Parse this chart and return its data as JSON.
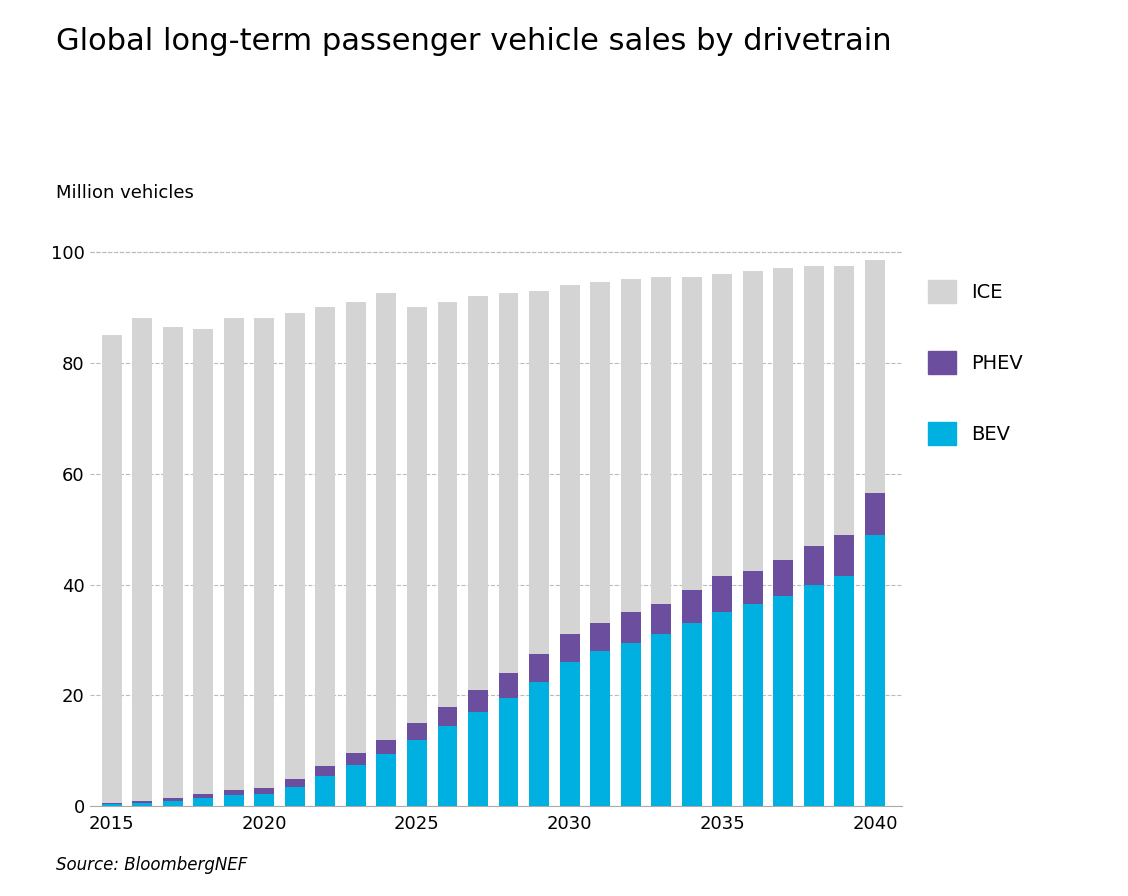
{
  "title": "Global long-term passenger vehicle sales by drivetrain",
  "ylabel": "Million vehicles",
  "source": "Source: BloombergNEF",
  "years": [
    2015,
    2016,
    2017,
    2018,
    2019,
    2020,
    2021,
    2022,
    2023,
    2024,
    2025,
    2026,
    2027,
    2028,
    2029,
    2030,
    2031,
    2032,
    2033,
    2034,
    2035,
    2036,
    2037,
    2038,
    2039,
    2040
  ],
  "bev": [
    0.4,
    0.6,
    1.0,
    1.5,
    2.0,
    2.2,
    3.5,
    5.5,
    7.5,
    9.5,
    12.0,
    14.5,
    17.0,
    19.5,
    22.5,
    26.0,
    28.0,
    29.5,
    31.0,
    33.0,
    35.0,
    36.5,
    38.0,
    40.0,
    41.5,
    49.0
  ],
  "phev": [
    0.2,
    0.3,
    0.5,
    0.8,
    1.0,
    1.2,
    1.5,
    1.8,
    2.2,
    2.5,
    3.0,
    3.5,
    4.0,
    4.5,
    5.0,
    5.0,
    5.0,
    5.5,
    5.5,
    6.0,
    6.5,
    6.0,
    6.5,
    7.0,
    7.5,
    7.5
  ],
  "total": [
    85.0,
    88.0,
    86.5,
    86.0,
    88.0,
    88.0,
    89.0,
    90.0,
    91.0,
    92.5,
    90.0,
    91.0,
    92.0,
    92.5,
    93.0,
    94.0,
    94.5,
    95.0,
    95.5,
    95.5,
    96.0,
    96.5,
    97.0,
    97.5,
    97.5,
    98.5
  ],
  "ice_color": "#d4d4d4",
  "phev_color": "#6b4f9e",
  "bev_color": "#00b0e0",
  "background_color": "#ffffff",
  "ylim": [
    0,
    105
  ],
  "yticks": [
    0,
    20,
    40,
    60,
    80,
    100
  ],
  "grid_color": "#bbbbbb",
  "bar_width": 0.65,
  "title_fontsize": 22,
  "label_fontsize": 13,
  "tick_fontsize": 13,
  "legend_fontsize": 14,
  "source_fontsize": 12
}
